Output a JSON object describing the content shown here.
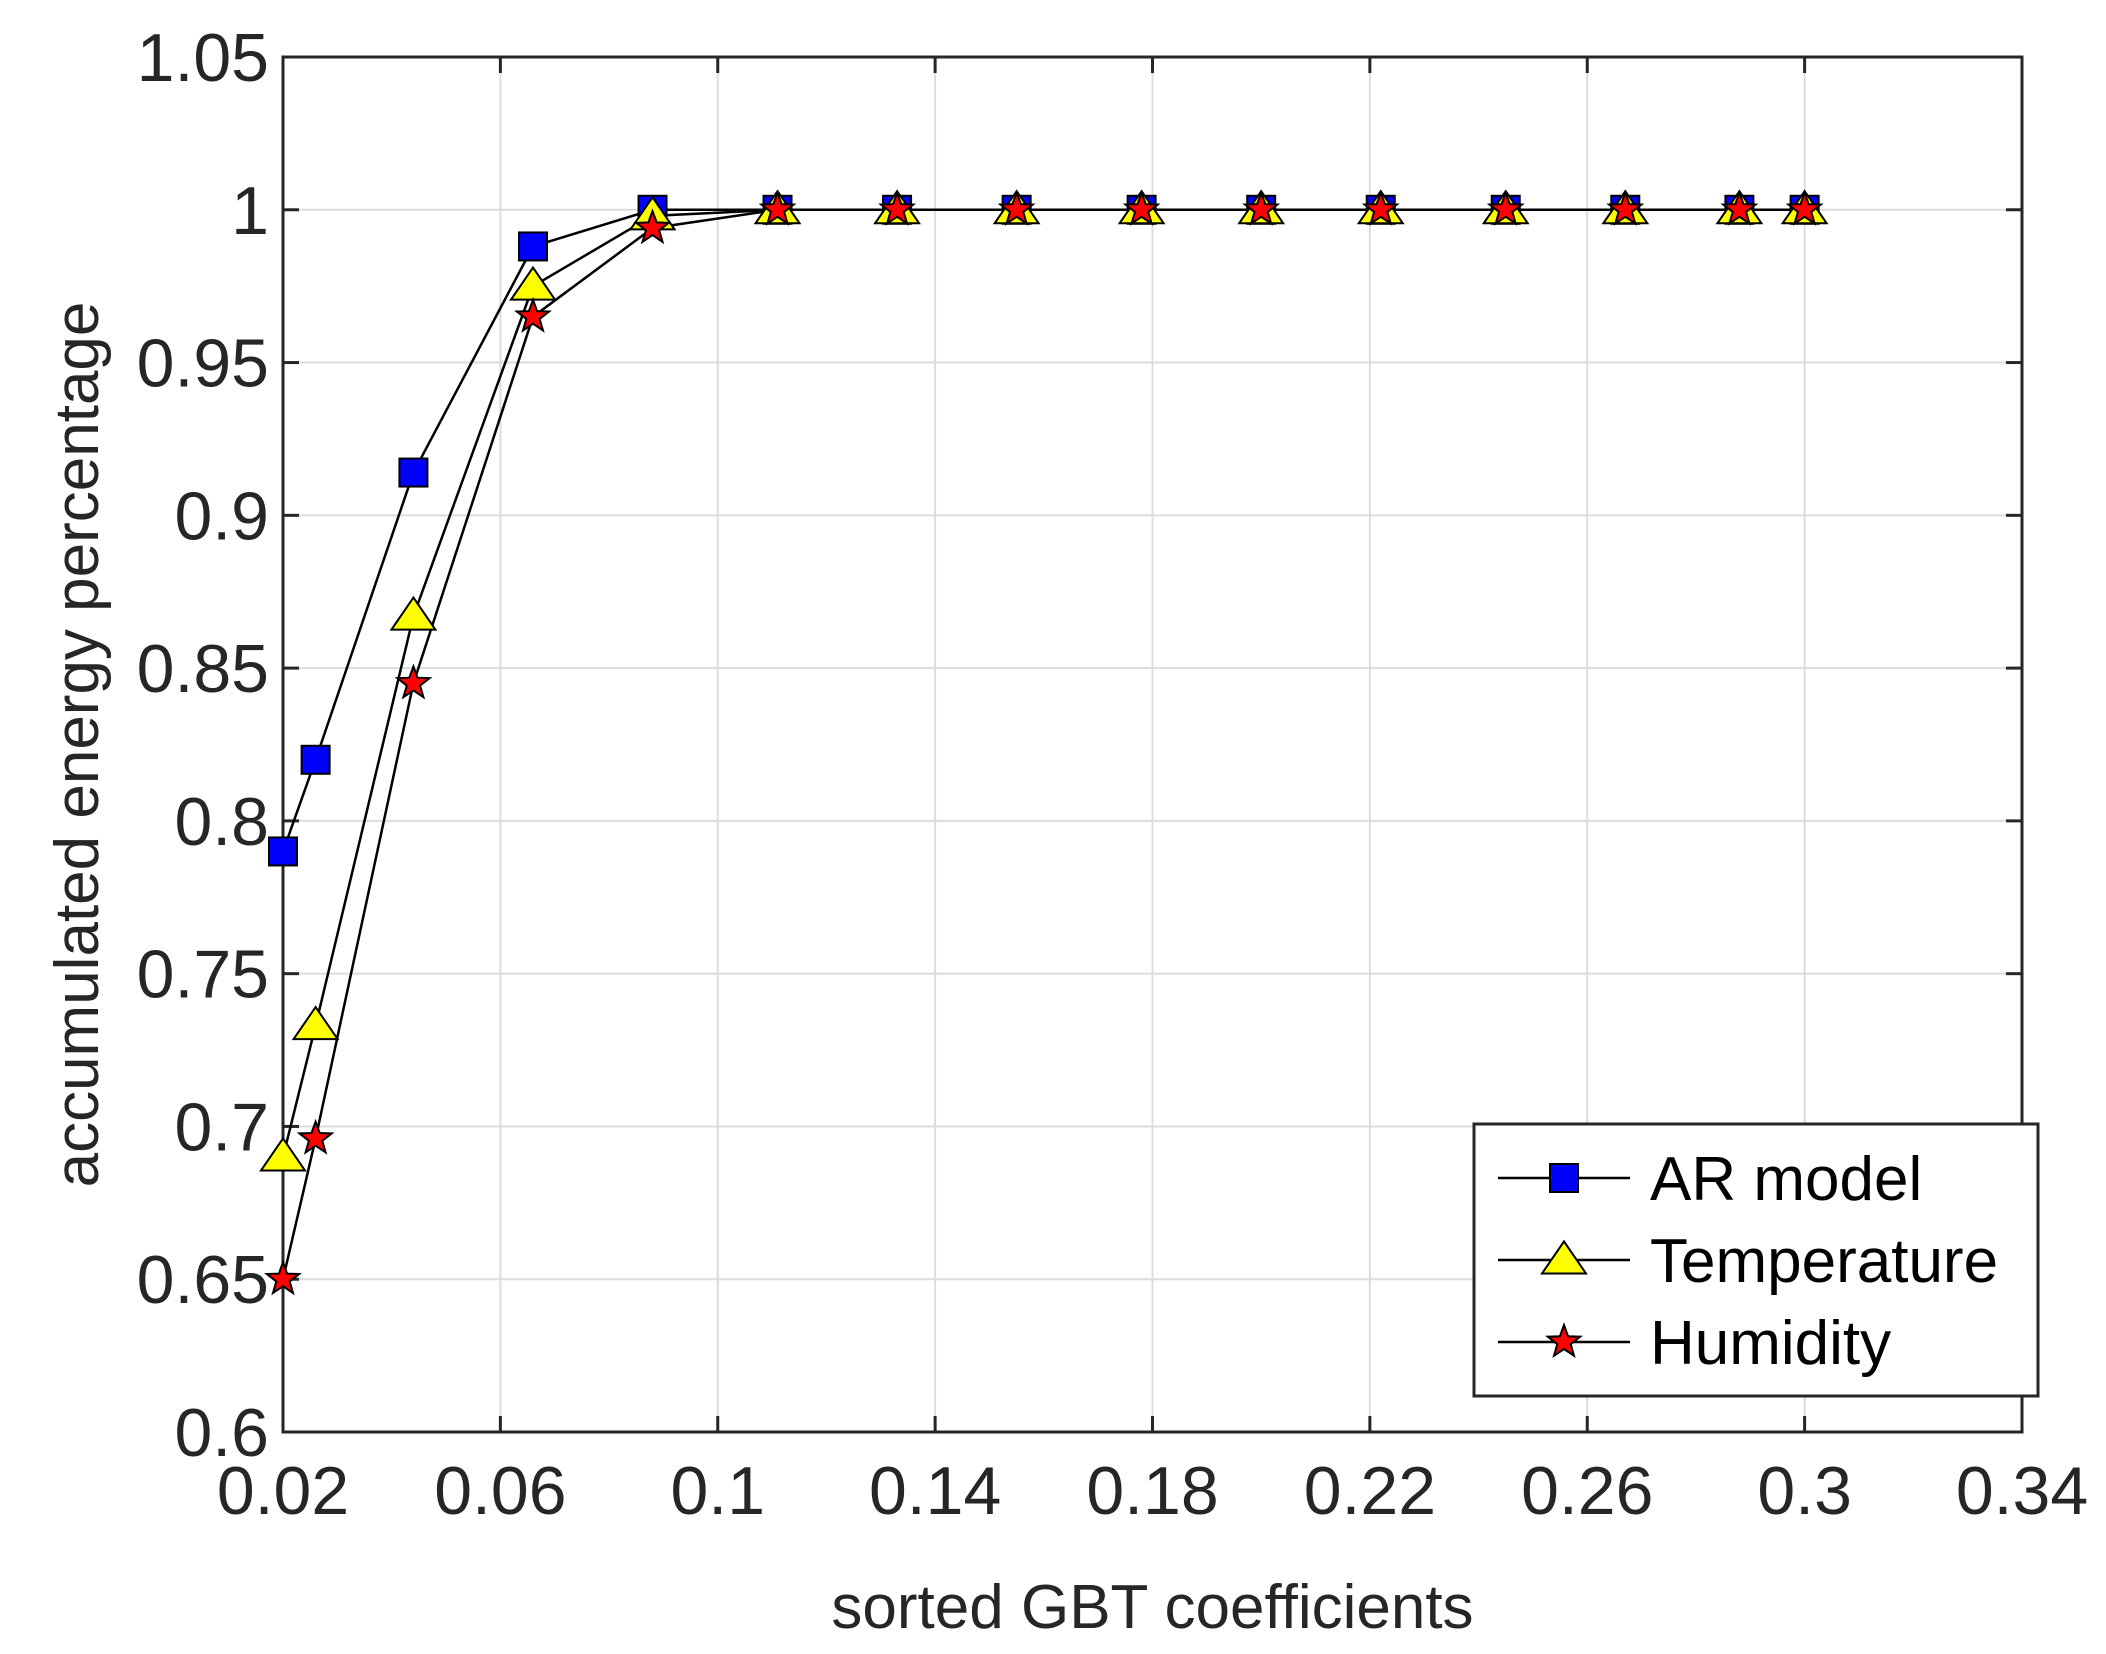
{
  "chart_data": {
    "type": "line",
    "xlabel": "sorted GBT coefficients",
    "ylabel": "accumulated energy percentage",
    "xlim": [
      0.02,
      0.34
    ],
    "ylim": [
      0.6,
      1.05
    ],
    "xticks": [
      0.02,
      0.06,
      0.1,
      0.14,
      0.18,
      0.22,
      0.26,
      0.3,
      0.34
    ],
    "xtick_labels": [
      "0.02",
      "0.06",
      "0.1",
      "0.14",
      "0.18",
      "0.22",
      "0.26",
      "0.3",
      "0.34"
    ],
    "yticks": [
      0.6,
      0.65,
      0.7,
      0.75,
      0.8,
      0.85,
      0.9,
      0.95,
      1,
      1.05
    ],
    "ytick_labels": [
      "0.6",
      "0.65",
      "0.7",
      "0.75",
      "0.8",
      "0.85",
      "0.9",
      "0.95",
      "1",
      "1.05"
    ],
    "grid": true,
    "legend_position": "bottom-right",
    "series": [
      {
        "name": "AR model",
        "marker": "square",
        "color": "#0000ff",
        "x": [
          0.02,
          0.026,
          0.044,
          0.066,
          0.088,
          0.111,
          0.133,
          0.155,
          0.178,
          0.2,
          0.222,
          0.245,
          0.267,
          0.288,
          0.3
        ],
        "y": [
          0.79,
          0.82,
          0.914,
          0.988,
          1.0,
          1.0,
          1.0,
          1.0,
          1.0,
          1.0,
          1.0,
          1.0,
          1.0,
          1.0,
          1.0
        ]
      },
      {
        "name": "Temperature",
        "marker": "triangle",
        "color": "#ffff00",
        "x": [
          0.02,
          0.026,
          0.044,
          0.066,
          0.088,
          0.111,
          0.133,
          0.155,
          0.178,
          0.2,
          0.222,
          0.245,
          0.267,
          0.288,
          0.3
        ],
        "y": [
          0.69,
          0.733,
          0.867,
          0.975,
          0.998,
          1.0,
          1.0,
          1.0,
          1.0,
          1.0,
          1.0,
          1.0,
          1.0,
          1.0,
          1.0
        ]
      },
      {
        "name": "Humidity",
        "marker": "star",
        "color": "#ff0000",
        "x": [
          0.02,
          0.026,
          0.044,
          0.066,
          0.088,
          0.111,
          0.133,
          0.155,
          0.178,
          0.2,
          0.222,
          0.245,
          0.267,
          0.288,
          0.3
        ],
        "y": [
          0.65,
          0.696,
          0.845,
          0.965,
          0.994,
          1.0,
          1.0,
          1.0,
          1.0,
          1.0,
          1.0,
          1.0,
          1.0,
          1.0,
          1.0
        ]
      }
    ]
  }
}
